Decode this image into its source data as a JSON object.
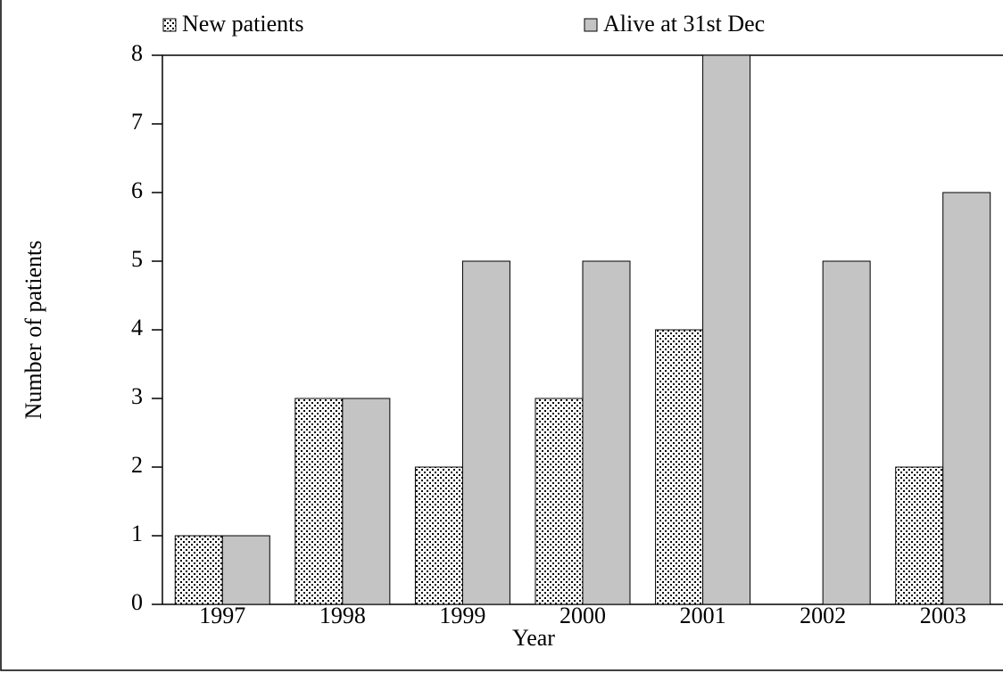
{
  "chart_data": {
    "type": "bar",
    "x_label": "Year",
    "y_label": "Number of patients",
    "categories": [
      "1997",
      "1998",
      "1999",
      "2000",
      "2001",
      "2002",
      "2003"
    ],
    "series": [
      {
        "name": "New patients",
        "color": "#ffffff",
        "pattern": "dots",
        "values": [
          1,
          3,
          2,
          3,
          4,
          0,
          2
        ]
      },
      {
        "name": "Alive at 31st Dec",
        "color": "#c4c4c4",
        "values": [
          1,
          3,
          5,
          5,
          8,
          5,
          6
        ]
      }
    ],
    "ylim": [
      0,
      8
    ],
    "yticks": [
      0,
      1,
      2,
      3,
      4,
      5,
      6,
      7,
      8
    ]
  }
}
